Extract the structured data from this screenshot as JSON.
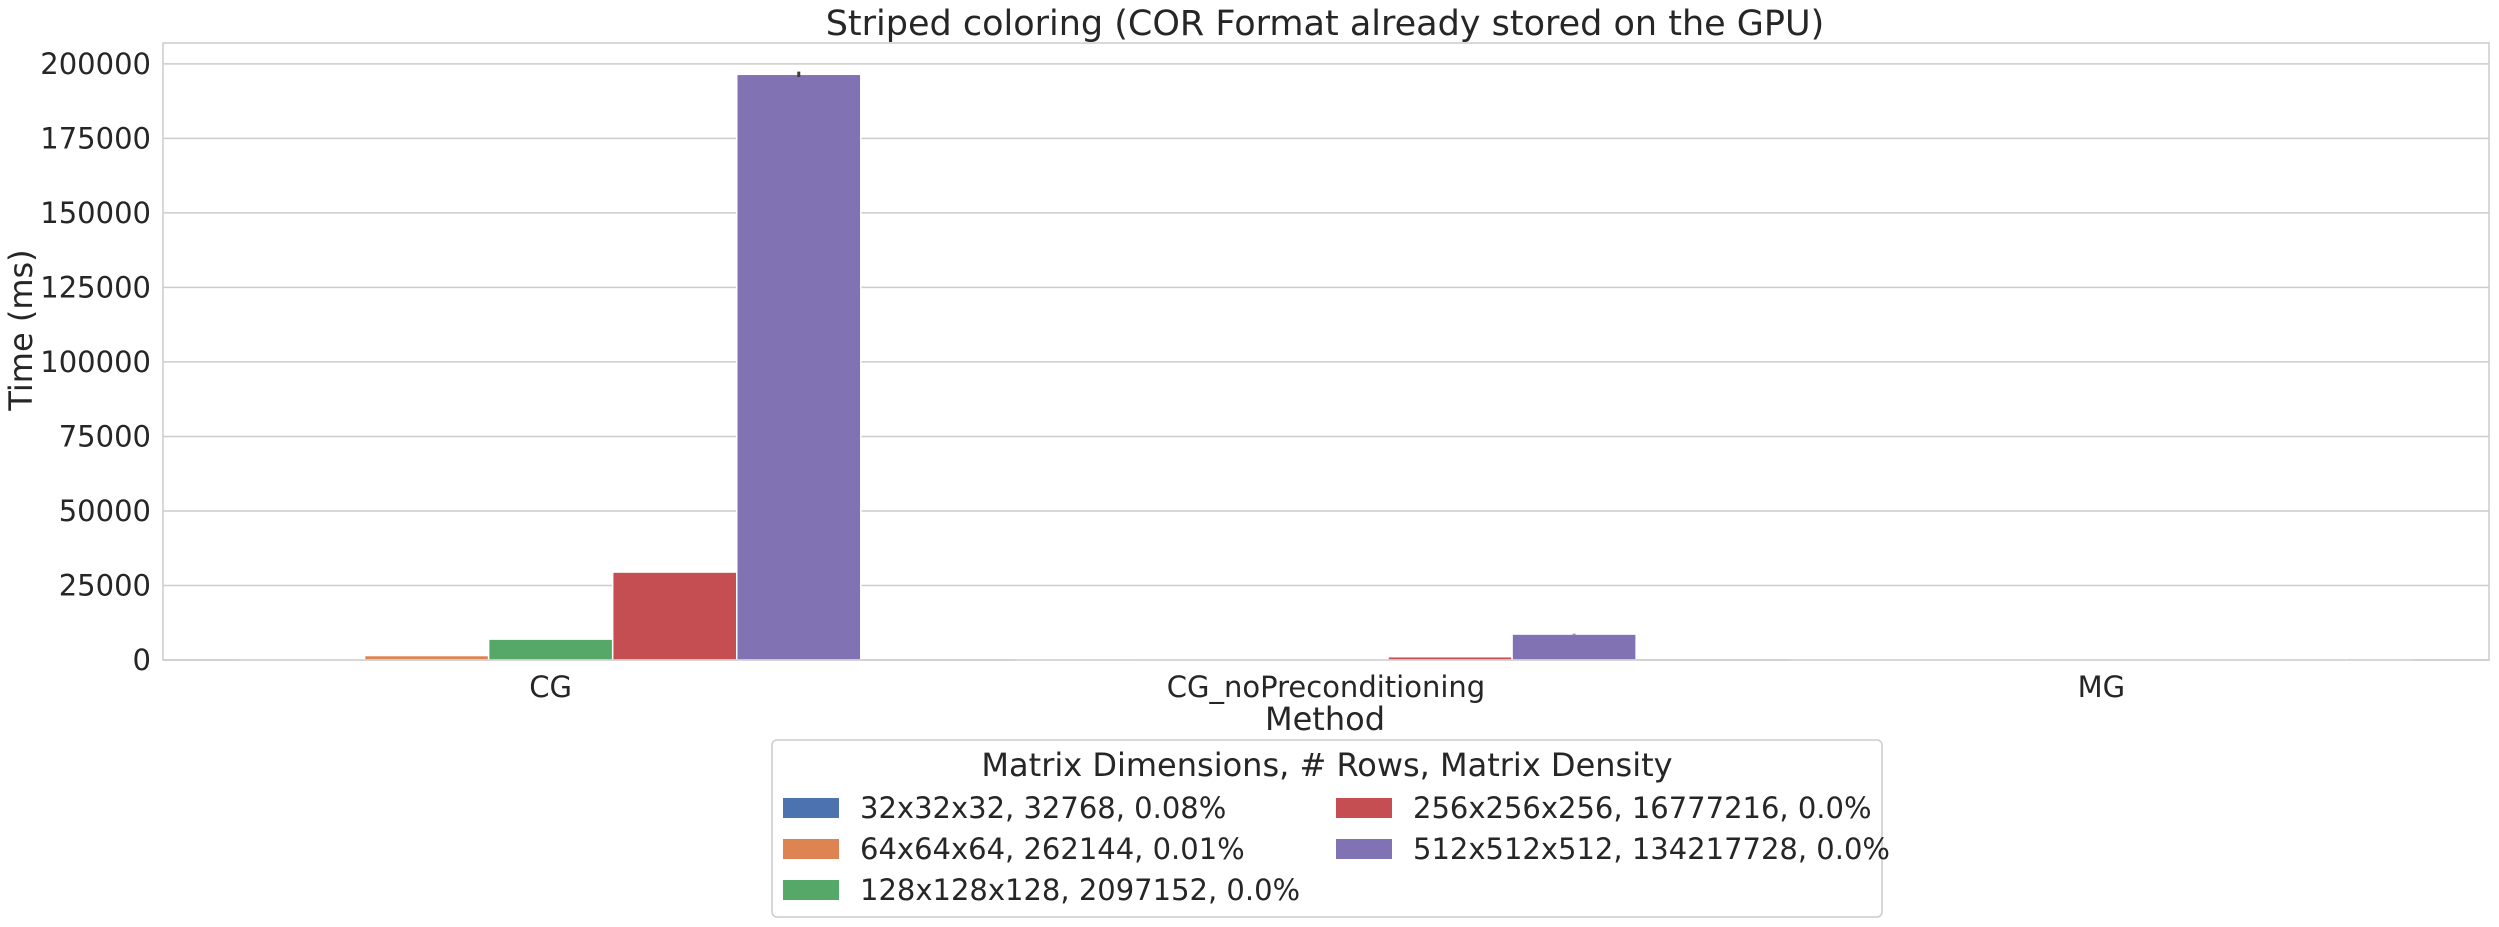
{
  "chart_data": {
    "type": "bar",
    "title": "Striped coloring (COR Format already stored on the GPU)",
    "xlabel": "Method",
    "ylabel": "Time (ms)",
    "categories": [
      "CG",
      "CG_noPreconditioning",
      "MG"
    ],
    "ylim": [
      0,
      207000
    ],
    "yticks": [
      0,
      25000,
      50000,
      75000,
      100000,
      125000,
      150000,
      175000,
      200000
    ],
    "grid": "horizontal",
    "legend_title": "Matrix Dimensions, # Rows, Matrix Density",
    "legend_position": "below",
    "series": [
      {
        "name": "32x32x32, 32768, 0.08%",
        "color": "#4c72b0",
        "values": [
          150,
          20,
          5
        ]
      },
      {
        "name": "64x64x64, 262144, 0.01%",
        "color": "#dd8452",
        "values": [
          1500,
          80,
          20
        ]
      },
      {
        "name": "128x128x128, 2097152, 0.0%",
        "color": "#55a868",
        "values": [
          7000,
          500,
          60
        ]
      },
      {
        "name": "256x256x256, 16777216, 0.0%",
        "color": "#c44e52",
        "values": [
          29500,
          1100,
          150
        ]
      },
      {
        "name": "512x512x512, 134217728, 0.0%",
        "color": "#8172b3",
        "values": [
          196500,
          8700,
          400
        ],
        "errors": [
          900,
          100,
          10
        ]
      }
    ]
  }
}
